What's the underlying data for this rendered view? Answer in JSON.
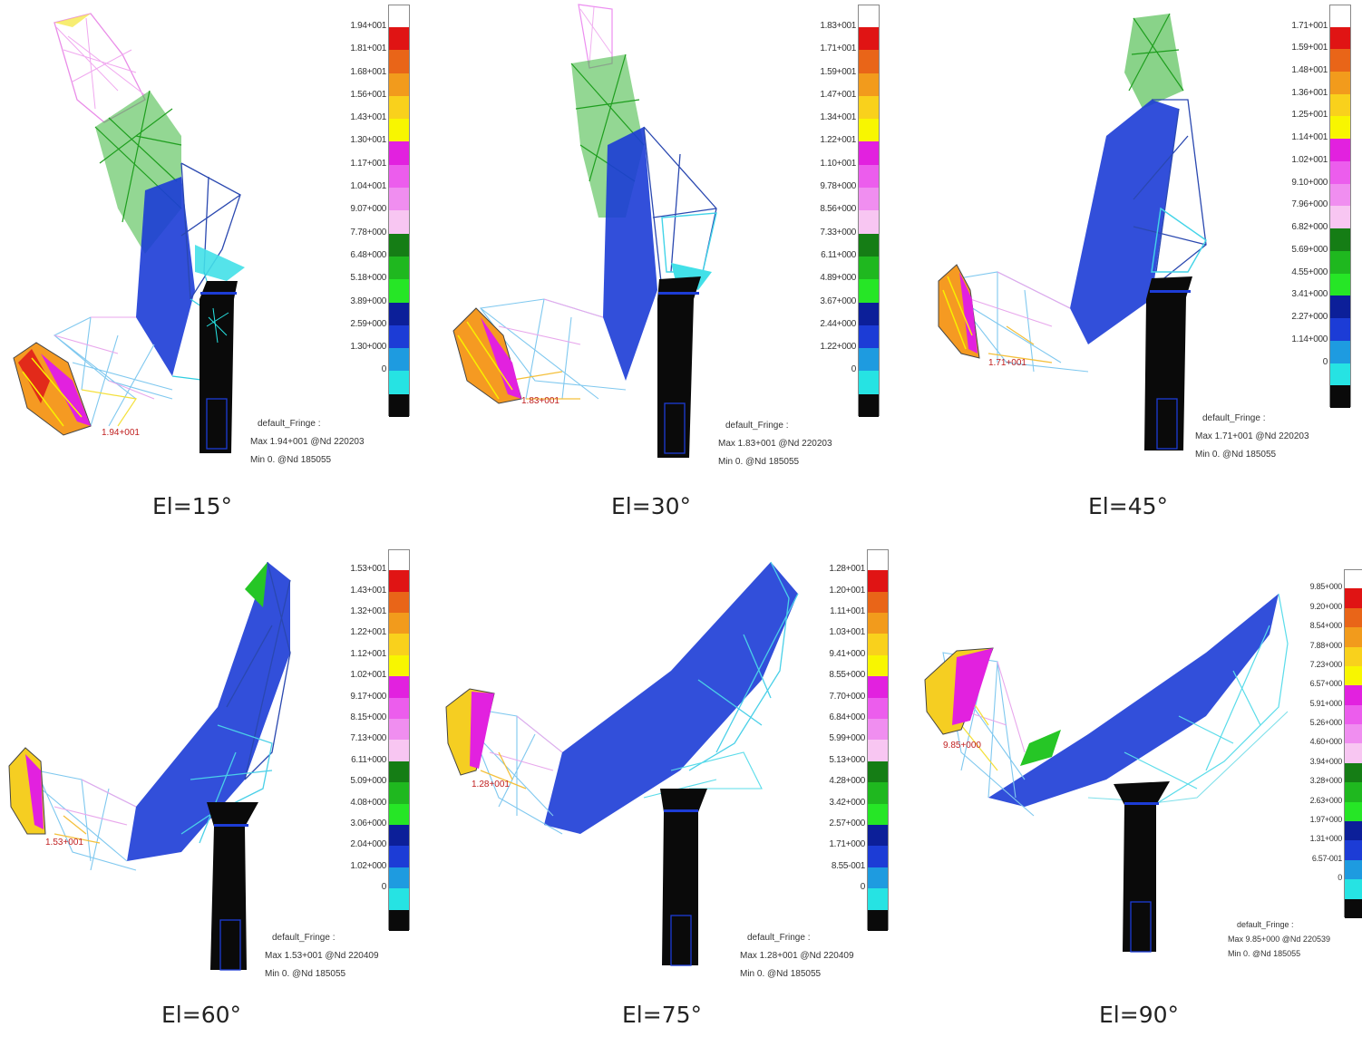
{
  "colormap": [
    "#0a0a0a",
    "#26e3e3",
    "#1e9be0",
    "#1c3cd6",
    "#0c1f99",
    "#26e626",
    "#1fb81f",
    "#157d15",
    "#f8c6f2",
    "#f08ef0",
    "#ec5ded",
    "#e221df",
    "#f8f600",
    "#f9d11c",
    "#f29b1c",
    "#e96518",
    "#e01414",
    "#ffffff"
  ],
  "panels": [
    {
      "caption": "El=15°",
      "scale": [
        "1.94+001",
        "1.81+001",
        "1.68+001",
        "1.56+001",
        "1.43+001",
        "1.30+001",
        "1.17+001",
        "1.04+001",
        "9.07+000",
        "7.78+000",
        "6.48+000",
        "5.18+000",
        "3.89+000",
        "2.59+000",
        "1.30+000",
        "0"
      ],
      "legend": {
        "title": "default_Fringe :",
        "max": "Max 1.94+001 @Nd 220203",
        "min": "Min 0. @Nd 185055"
      },
      "annotation": "1.94+001"
    },
    {
      "caption": "El=30°",
      "scale": [
        "1.83+001",
        "1.71+001",
        "1.59+001",
        "1.47+001",
        "1.34+001",
        "1.22+001",
        "1.10+001",
        "9.78+000",
        "8.56+000",
        "7.33+000",
        "6.11+000",
        "4.89+000",
        "3.67+000",
        "2.44+000",
        "1.22+000",
        "0"
      ],
      "legend": {
        "title": "default_Fringe :",
        "max": "Max 1.83+001 @Nd 220203",
        "min": "Min 0. @Nd 185055"
      },
      "annotation": "1.83+001"
    },
    {
      "caption": "El=45°",
      "scale": [
        "1.71+001",
        "1.59+001",
        "1.48+001",
        "1.36+001",
        "1.25+001",
        "1.14+001",
        "1.02+001",
        "9.10+000",
        "7.96+000",
        "6.82+000",
        "5.69+000",
        "4.55+000",
        "3.41+000",
        "2.27+000",
        "1.14+000",
        "0"
      ],
      "legend": {
        "title": "default_Fringe :",
        "max": "Max 1.71+001 @Nd 220203",
        "min": "Min 0. @Nd 185055"
      },
      "annotation": "1.71+001"
    },
    {
      "caption": "El=60°",
      "scale": [
        "1.53+001",
        "1.43+001",
        "1.32+001",
        "1.22+001",
        "1.12+001",
        "1.02+001",
        "9.17+000",
        "8.15+000",
        "7.13+000",
        "6.11+000",
        "5.09+000",
        "4.08+000",
        "3.06+000",
        "2.04+000",
        "1.02+000",
        "0"
      ],
      "legend": {
        "title": "default_Fringe :",
        "max": "Max 1.53+001 @Nd 220409",
        "min": "Min 0. @Nd 185055"
      },
      "annotation": "1.53+001"
    },
    {
      "caption": "El=75°",
      "scale": [
        "1.28+001",
        "1.20+001",
        "1.11+001",
        "1.03+001",
        "9.41+000",
        "8.55+000",
        "7.70+000",
        "6.84+000",
        "5.99+000",
        "5.13+000",
        "4.28+000",
        "3.42+000",
        "2.57+000",
        "1.71+000",
        "8.55-001",
        "0"
      ],
      "legend": {
        "title": "default_Fringe :",
        "max": "Max 1.28+001 @Nd 220409",
        "min": "Min 0. @Nd 185055"
      },
      "annotation": "1.28+001"
    },
    {
      "caption": "El=90°",
      "scale": [
        "9.85+000",
        "9.20+000",
        "8.54+000",
        "7.88+000",
        "7.23+000",
        "6.57+000",
        "5.91+000",
        "5.26+000",
        "4.60+000",
        "3.94+000",
        "3.28+000",
        "2.63+000",
        "1.97+000",
        "1.31+000",
        "6.57-001",
        "0"
      ],
      "legend": {
        "title": "default_Fringe :",
        "max": "Max 9.85+000 @Nd 220539",
        "min": "Min 0. @Nd 185055"
      },
      "annotation": "9.85+000"
    }
  ]
}
